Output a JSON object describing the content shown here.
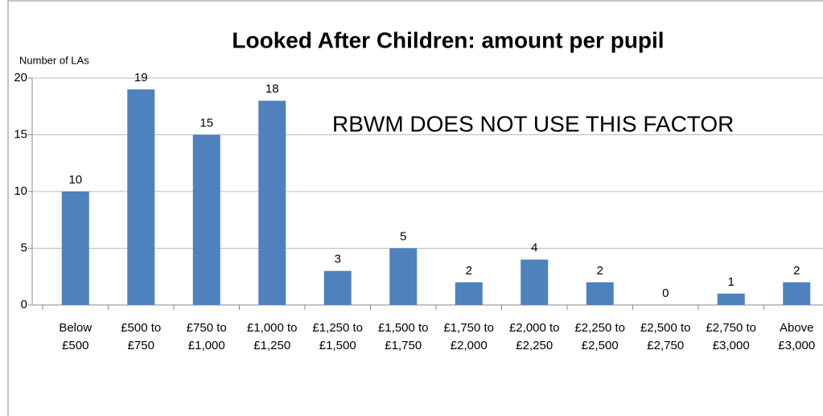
{
  "chart_data": {
    "type": "bar",
    "title": "Looked After Children: amount per pupil",
    "y_axis_label": "Number  of LAs",
    "annotation": "RBWM DOES NOT USE THIS FACTOR",
    "categories": [
      "Below £500",
      "£500 to £750",
      "£750 to £1,000",
      "£1,000 to £1,250",
      "£1,250 to £1,500",
      "£1,500 to £1,750",
      "£1,750 to £2,000",
      "£2,000 to £2,250",
      "£2,250 to £2,500",
      "£2,500 to £2,750",
      "£2,750 to £3,000",
      "Above £3,000"
    ],
    "values": [
      10,
      19,
      15,
      18,
      3,
      5,
      2,
      4,
      2,
      0,
      1,
      2
    ],
    "color": "#4f81bd",
    "ylim": [
      0,
      20
    ],
    "yticks": [
      0,
      5,
      10,
      15,
      20
    ],
    "grid": true
  }
}
